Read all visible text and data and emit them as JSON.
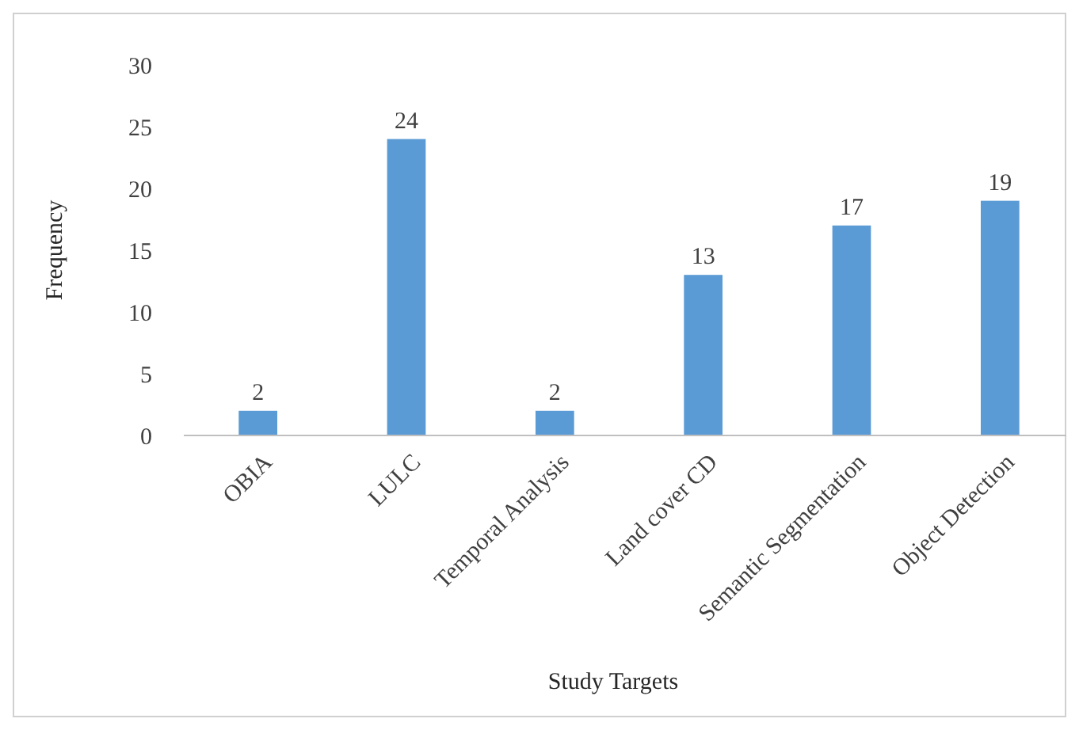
{
  "chart_data": {
    "type": "bar",
    "xlabel": "Study Targets",
    "ylabel": "Frequency",
    "categories": [
      "OBIA",
      "LULC",
      "Temporal Analysis",
      "Land cover CD",
      "Semantic Segmentation",
      "Object Detection"
    ],
    "values": [
      2,
      24,
      2,
      13,
      17,
      19
    ],
    "color": "#5b9bd5",
    "ylim": [
      0,
      30
    ],
    "yticks": [
      0,
      5,
      10,
      15,
      20,
      25,
      30
    ],
    "grid": false,
    "data_labels": true
  }
}
